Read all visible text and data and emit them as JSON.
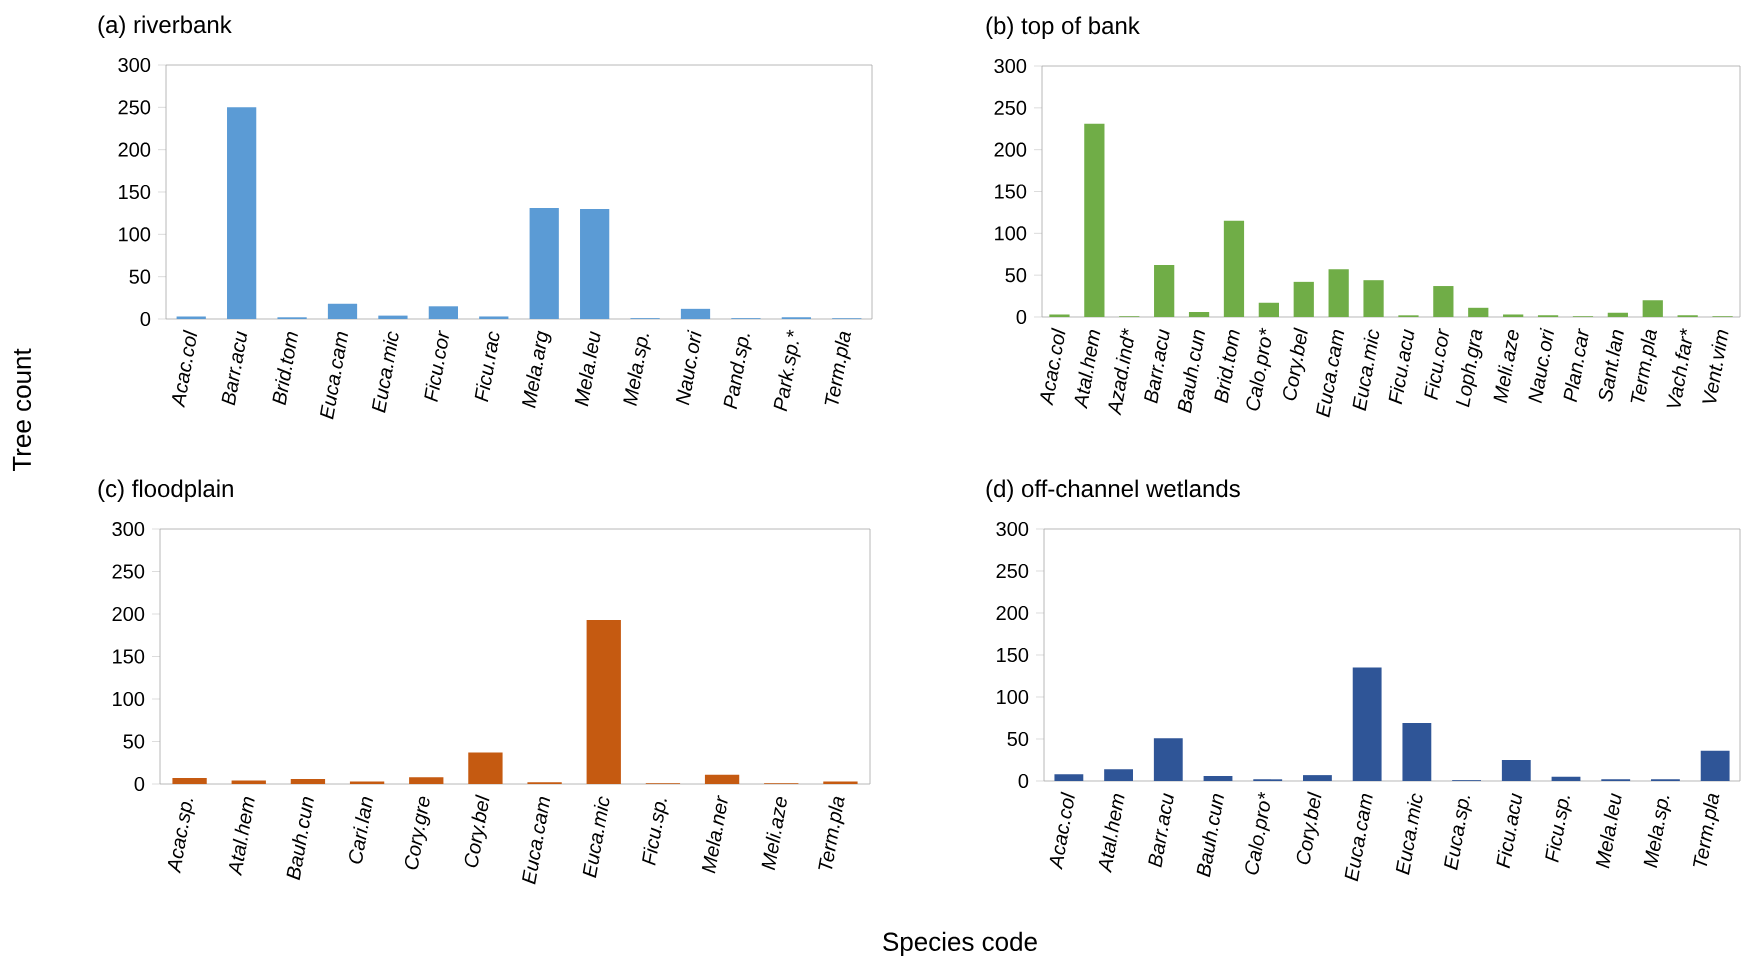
{
  "chart_data": [
    {
      "type": "bar",
      "title": "(a) riverbank",
      "ylabel": "Tree count",
      "color": "#5b9bd5",
      "ylim": [
        0,
        300
      ],
      "yticks": [
        0,
        50,
        100,
        150,
        200,
        250,
        300
      ],
      "categories": [
        "Acac.col",
        "Barr.acu",
        "Brid.tom",
        "Euca.cam",
        "Euca.mic",
        "Ficu.cor",
        "Ficu.rac",
        "Mela.arg",
        "Mela.leu",
        "Mela.sp.",
        "Nauc.ori",
        "Pand.sp.",
        "Park.sp.*",
        "Term.pla"
      ],
      "values": [
        3,
        250,
        2,
        18,
        4,
        15,
        3,
        131,
        130,
        1,
        12,
        1,
        2,
        1
      ]
    },
    {
      "type": "bar",
      "title": "(b) top of bank",
      "color": "#70ad47",
      "ylim": [
        0,
        300
      ],
      "yticks": [
        0,
        50,
        100,
        150,
        200,
        250,
        300
      ],
      "categories": [
        "Acac.col",
        "Atal.hem",
        "Azad.ind*",
        "Barr.acu",
        "Bauh.cun",
        "Brid.tom",
        "Calo.pro*",
        "Cory.bel",
        "Euca.cam",
        "Euca.mic",
        "Ficu.acu",
        "Ficu.cor",
        "Loph.gra",
        "Meli.aze",
        "Nauc.ori",
        "Plan.car",
        "Sant.lan",
        "Term.pla",
        "Vach.far*",
        "Vent.vim"
      ],
      "values": [
        3,
        231,
        1,
        62,
        6,
        115,
        17,
        42,
        57,
        44,
        2,
        37,
        11,
        3,
        2,
        1,
        5,
        20,
        2,
        1
      ]
    },
    {
      "type": "bar",
      "title": "(c) floodplain",
      "xlabel": "Species code",
      "color": "#c55a11",
      "ylim": [
        0,
        300
      ],
      "yticks": [
        0,
        50,
        100,
        150,
        200,
        250,
        300
      ],
      "categories": [
        "Acac.sp.",
        "Atal.hem",
        "Bauh.cun",
        "Cari.lan",
        "Cory.gre",
        "Cory.bel",
        "Euca.cam",
        "Euca.mic",
        "Ficu.sp.",
        "Mela.ner",
        "Meli.aze",
        "Term.pla"
      ],
      "values": [
        7,
        4,
        6,
        3,
        8,
        37,
        2,
        193,
        1,
        11,
        1,
        3
      ]
    },
    {
      "type": "bar",
      "title": "(d) off-channel wetlands",
      "color": "#2f5597",
      "ylim": [
        0,
        300
      ],
      "yticks": [
        0,
        50,
        100,
        150,
        200,
        250,
        300
      ],
      "categories": [
        "Acac.col",
        "Atal.hem",
        "Barr.acu",
        "Bauh.cun",
        "Calo.pro*",
        "Cory.bel",
        "Euca.cam",
        "Euca.mic",
        "Euca.sp.",
        "Ficu.acu",
        "Ficu.sp.",
        "Mela.leu",
        "Mela.sp.",
        "Term.pla"
      ],
      "values": [
        8,
        14,
        51,
        6,
        2,
        7,
        135,
        69,
        1,
        25,
        5,
        2,
        2,
        36
      ]
    }
  ]
}
